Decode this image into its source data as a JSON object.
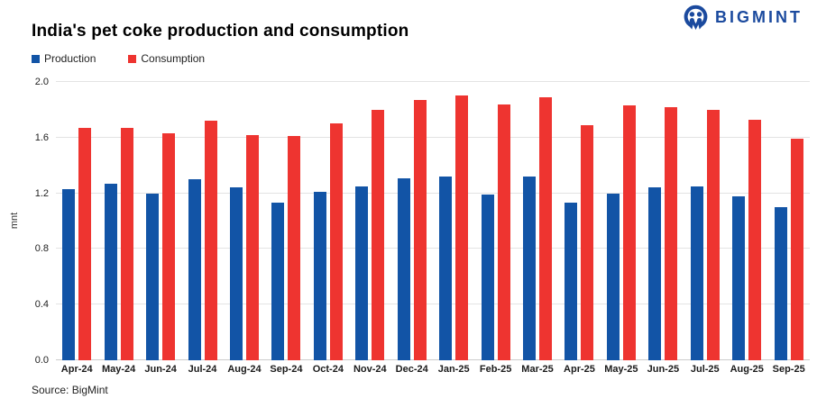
{
  "brand": {
    "name": "BIGMINT",
    "color": "#1b4a9e"
  },
  "source_note": "Source: BigMint",
  "chart_data": {
    "type": "bar",
    "title": "India's pet coke production and consumption",
    "xlabel": "",
    "ylabel": "mnt",
    "ylim": [
      0,
      2.0
    ],
    "ytick_labels": [
      "0.0",
      "0.4",
      "0.8",
      "1.2",
      "1.6",
      "2.0"
    ],
    "grid": "horizontal",
    "legend_position": "top-left",
    "categories": [
      "Apr-24",
      "May-24",
      "Jun-24",
      "Jul-24",
      "Aug-24",
      "Sep-24",
      "Oct-24",
      "Nov-24",
      "Dec-24",
      "Jan-25",
      "Feb-25",
      "Mar-25",
      "Apr-25",
      "May-25",
      "Jun-25",
      "Jul-25",
      "Aug-25",
      "Sep-25"
    ],
    "series": [
      {
        "name": "Production",
        "color": "#1254a6",
        "values": [
          1.23,
          1.27,
          1.2,
          1.3,
          1.24,
          1.13,
          1.21,
          1.25,
          1.31,
          1.32,
          1.19,
          1.32,
          1.13,
          1.2,
          1.24,
          1.25,
          1.18,
          1.1
        ]
      },
      {
        "name": "Consumption",
        "color": "#ee3430",
        "values": [
          1.67,
          1.67,
          1.63,
          1.72,
          1.62,
          1.61,
          1.7,
          1.8,
          1.87,
          1.9,
          1.84,
          1.89,
          1.69,
          1.83,
          1.82,
          1.8,
          1.73,
          1.59
        ]
      }
    ]
  }
}
